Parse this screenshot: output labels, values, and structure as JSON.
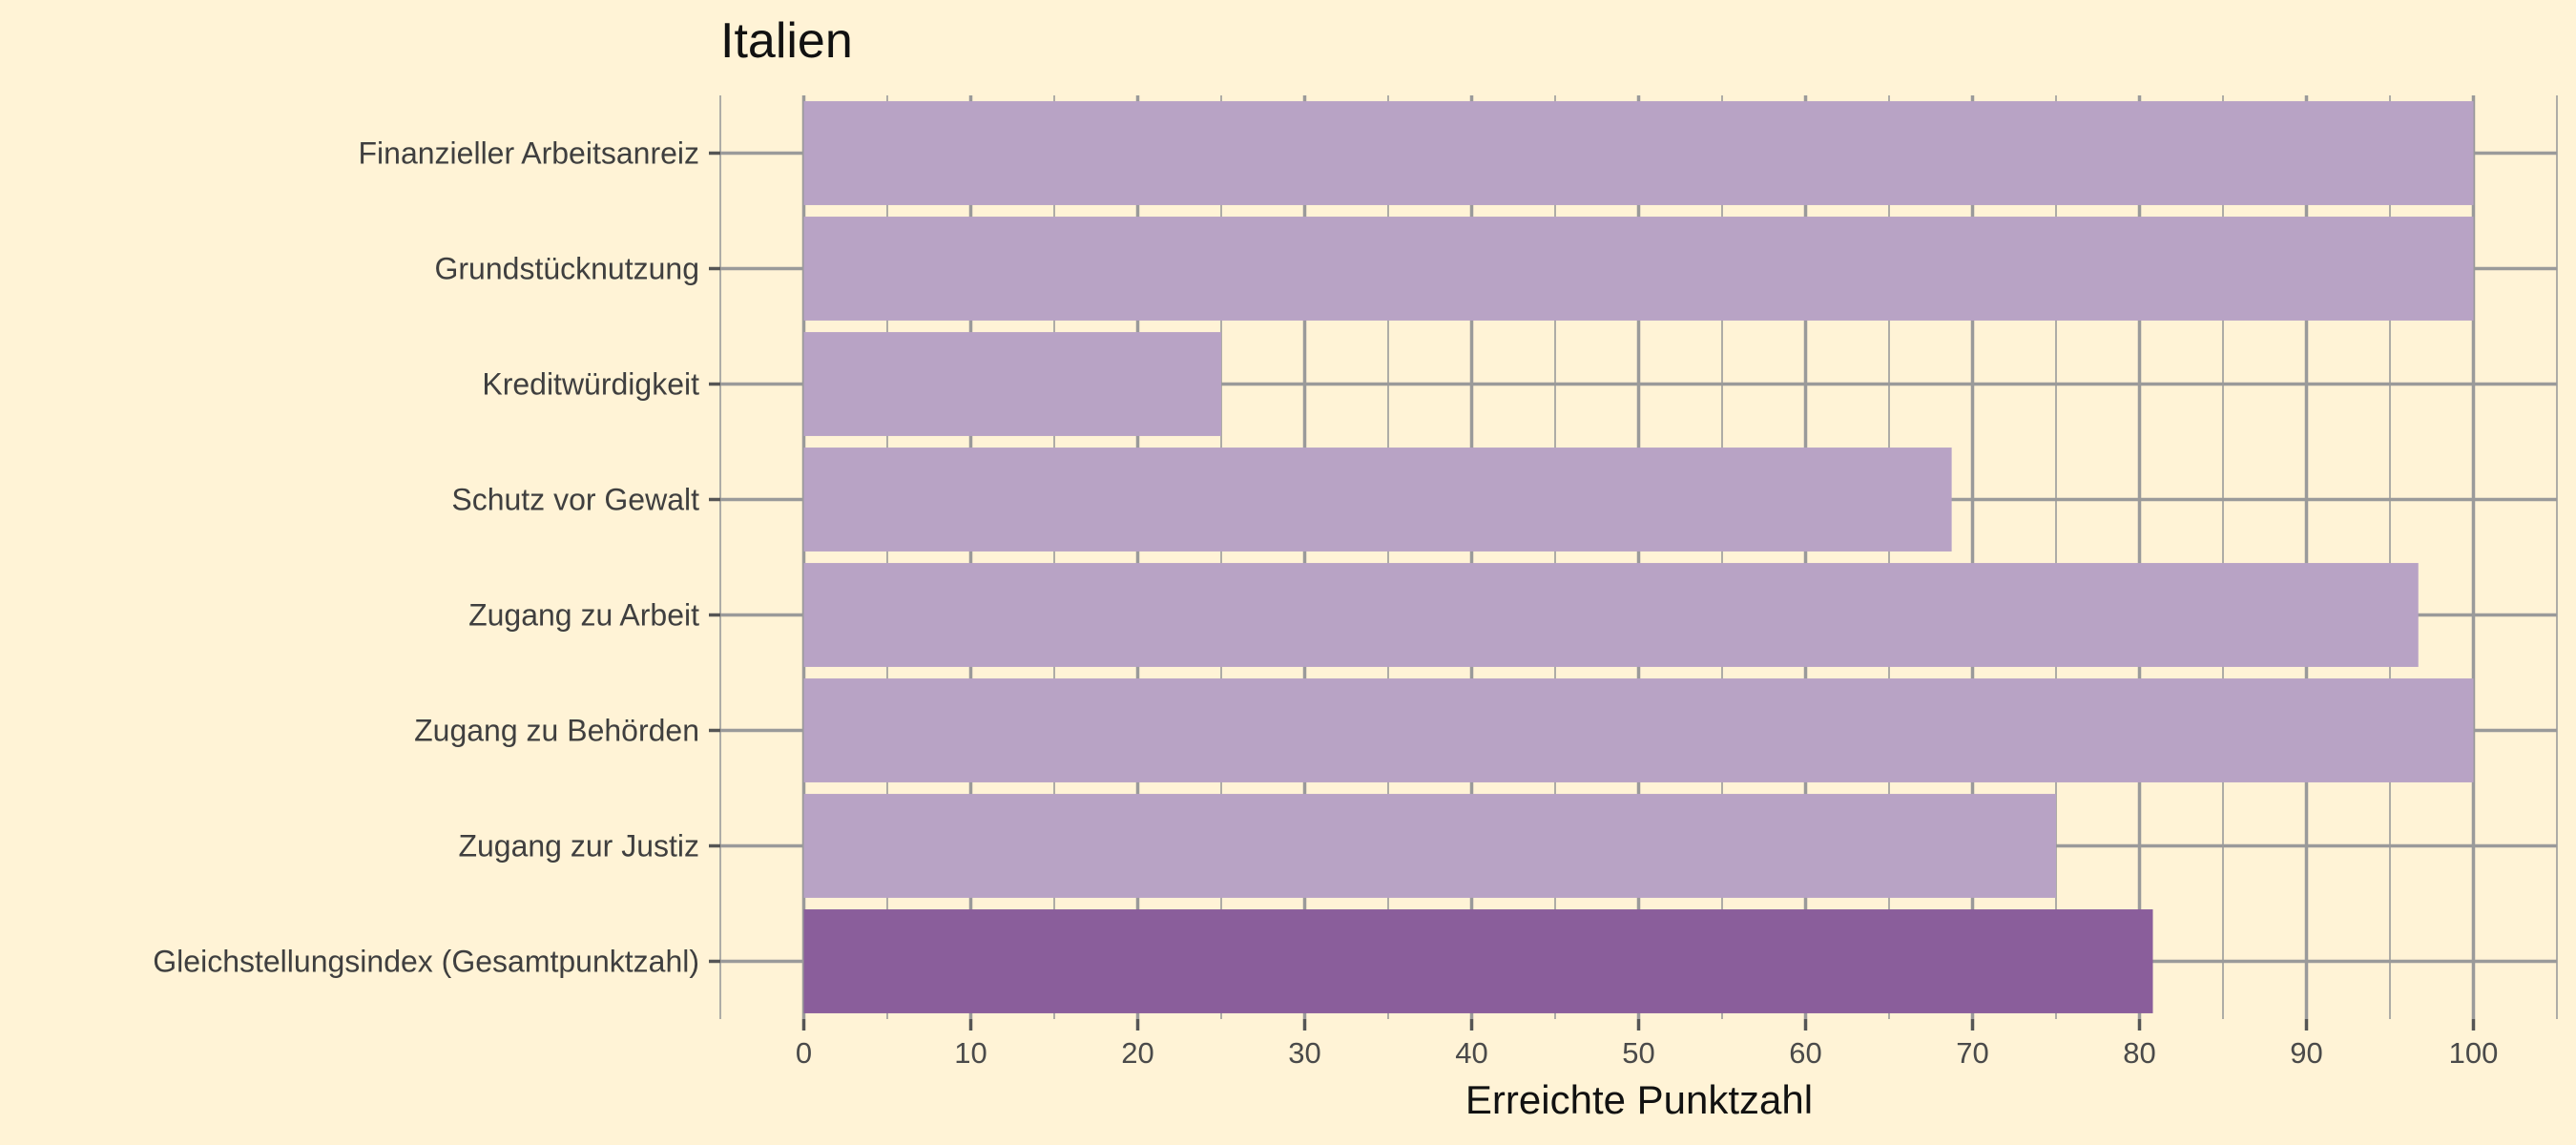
{
  "chart_data": {
    "type": "bar",
    "orientation": "horizontal",
    "title": "Italien",
    "xlabel": "Erreichte Punktzahl",
    "ylabel": "",
    "xlim": [
      -5,
      105
    ],
    "xticks": [
      0,
      10,
      20,
      30,
      40,
      50,
      60,
      70,
      80,
      90,
      100
    ],
    "grid": true,
    "categories": [
      "Finanzieller Arbeitsanreiz",
      "Grundstücknutzung",
      "Kreditwürdigkeit",
      "Schutz vor Gewalt",
      "Zugang zu Arbeit",
      "Zugang zu Behörden",
      "Zugang zur Justiz",
      "Gleichstellungsindex (Gesamtpunktzahl)"
    ],
    "values": [
      100,
      100,
      25,
      68.75,
      96.7,
      100,
      75,
      80.8
    ],
    "colors": {
      "component": "#b8a3c5",
      "total": "#8a5e9b",
      "background": "#fff3d6",
      "grid": "#9a9a9a"
    }
  }
}
